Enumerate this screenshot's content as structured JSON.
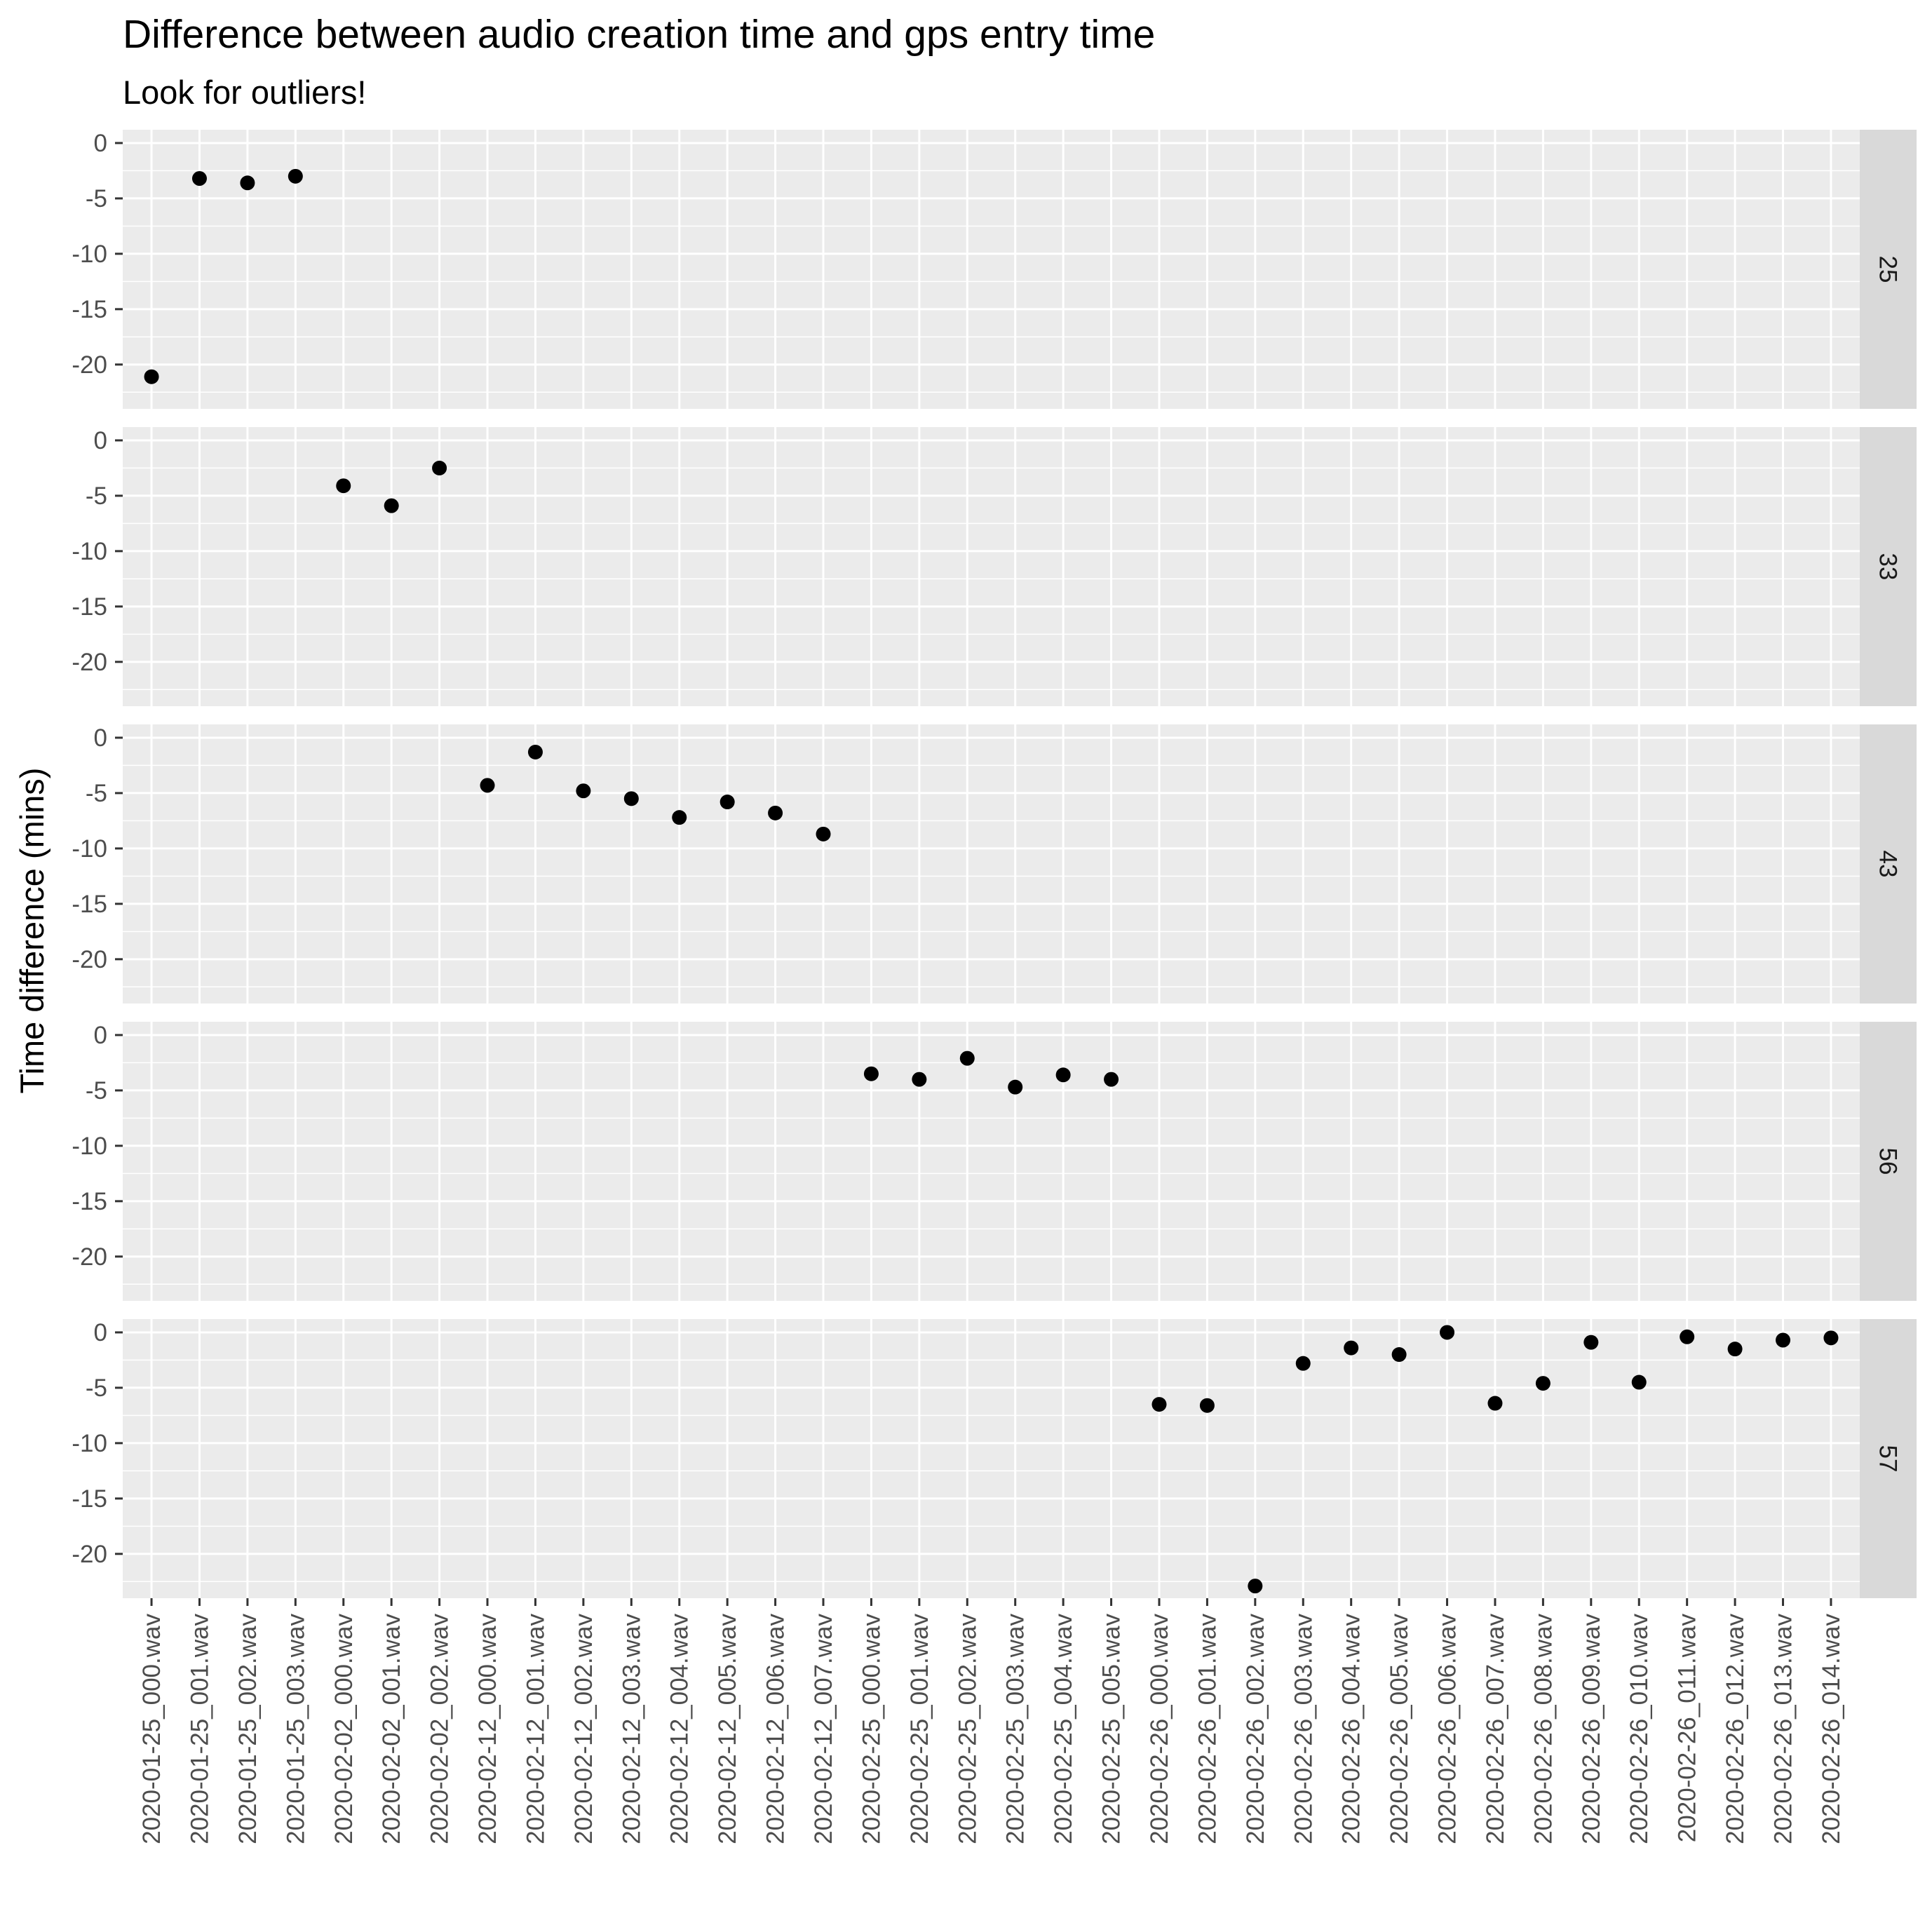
{
  "chart_data": {
    "type": "scatter",
    "title": "Difference between audio creation time and gps entry time",
    "subtitle": "Look for outliers!",
    "xlabel": "",
    "ylabel": "Time difference (mins)",
    "ylim": [
      -24,
      1.2
    ],
    "yticks": [
      0,
      -5,
      -10,
      -15,
      -20
    ],
    "ytick_labels": [
      "0",
      "-5",
      "-10",
      "-15",
      "-20"
    ],
    "grid": true,
    "colors": {
      "panel_bg": "#ebebeb",
      "strip_bg": "#d9d9d9",
      "point": "#000000",
      "gridline": "#ffffff"
    },
    "categories": [
      "2020-01-25_000.wav",
      "2020-01-25_001.wav",
      "2020-01-25_002.wav",
      "2020-01-25_003.wav",
      "2020-02-02_000.wav",
      "2020-02-02_001.wav",
      "2020-02-02_002.wav",
      "2020-02-12_000.wav",
      "2020-02-12_001.wav",
      "2020-02-12_002.wav",
      "2020-02-12_003.wav",
      "2020-02-12_004.wav",
      "2020-02-12_005.wav",
      "2020-02-12_006.wav",
      "2020-02-12_007.wav",
      "2020-02-25_000.wav",
      "2020-02-25_001.wav",
      "2020-02-25_002.wav",
      "2020-02-25_003.wav",
      "2020-02-25_004.wav",
      "2020-02-25_005.wav",
      "2020-02-26_000.wav",
      "2020-02-26_001.wav",
      "2020-02-26_002.wav",
      "2020-02-26_003.wav",
      "2020-02-26_004.wav",
      "2020-02-26_005.wav",
      "2020-02-26_006.wav",
      "2020-02-26_007.wav",
      "2020-02-26_008.wav",
      "2020-02-26_009.wav",
      "2020-02-26_010.wav",
      "2020-02-26_011.wav",
      "2020-02-26_012.wav",
      "2020-02-26_013.wav",
      "2020-02-26_014.wav"
    ],
    "facets": [
      {
        "label": "25",
        "points": [
          {
            "x": "2020-01-25_000.wav",
            "y": -21.1
          },
          {
            "x": "2020-01-25_001.wav",
            "y": -3.2
          },
          {
            "x": "2020-01-25_002.wav",
            "y": -3.6
          },
          {
            "x": "2020-01-25_003.wav",
            "y": -3.0
          }
        ]
      },
      {
        "label": "33",
        "points": [
          {
            "x": "2020-02-02_000.wav",
            "y": -4.1
          },
          {
            "x": "2020-02-02_001.wav",
            "y": -5.9
          },
          {
            "x": "2020-02-02_002.wav",
            "y": -2.5
          }
        ]
      },
      {
        "label": "43",
        "points": [
          {
            "x": "2020-02-12_000.wav",
            "y": -4.3
          },
          {
            "x": "2020-02-12_001.wav",
            "y": -1.3
          },
          {
            "x": "2020-02-12_002.wav",
            "y": -4.8
          },
          {
            "x": "2020-02-12_003.wav",
            "y": -5.5
          },
          {
            "x": "2020-02-12_004.wav",
            "y": -7.2
          },
          {
            "x": "2020-02-12_005.wav",
            "y": -5.8
          },
          {
            "x": "2020-02-12_006.wav",
            "y": -6.8
          },
          {
            "x": "2020-02-12_007.wav",
            "y": -8.7
          }
        ]
      },
      {
        "label": "56",
        "points": [
          {
            "x": "2020-02-25_000.wav",
            "y": -3.5
          },
          {
            "x": "2020-02-25_001.wav",
            "y": -4.0
          },
          {
            "x": "2020-02-25_002.wav",
            "y": -2.1
          },
          {
            "x": "2020-02-25_003.wav",
            "y": -4.7
          },
          {
            "x": "2020-02-25_004.wav",
            "y": -3.6
          },
          {
            "x": "2020-02-25_005.wav",
            "y": -4.0
          }
        ]
      },
      {
        "label": "57",
        "points": [
          {
            "x": "2020-02-26_000.wav",
            "y": -6.5
          },
          {
            "x": "2020-02-26_001.wav",
            "y": -6.6
          },
          {
            "x": "2020-02-26_002.wav",
            "y": -22.9
          },
          {
            "x": "2020-02-26_003.wav",
            "y": -2.8
          },
          {
            "x": "2020-02-26_004.wav",
            "y": -1.4
          },
          {
            "x": "2020-02-26_005.wav",
            "y": -2.0
          },
          {
            "x": "2020-02-26_006.wav",
            "y": 0.0
          },
          {
            "x": "2020-02-26_007.wav",
            "y": -6.4
          },
          {
            "x": "2020-02-26_008.wav",
            "y": -4.6
          },
          {
            "x": "2020-02-26_009.wav",
            "y": -0.9
          },
          {
            "x": "2020-02-26_010.wav",
            "y": -4.5
          },
          {
            "x": "2020-02-26_011.wav",
            "y": -0.4
          },
          {
            "x": "2020-02-26_012.wav",
            "y": -1.5
          },
          {
            "x": "2020-02-26_013.wav",
            "y": -0.7
          },
          {
            "x": "2020-02-26_014.wav",
            "y": -0.5
          }
        ]
      }
    ]
  }
}
